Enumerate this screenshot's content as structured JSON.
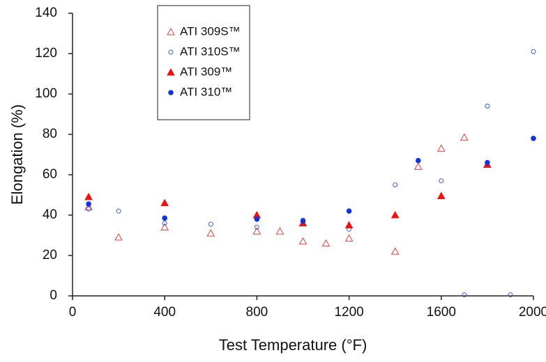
{
  "chart_data": {
    "type": "scatter",
    "xlabel": "Test Temperature (°F)",
    "ylabel": "Elongation  (%)",
    "xlim": [
      0,
      2000
    ],
    "xticks": [
      0,
      400,
      800,
      1200,
      1600,
      2000
    ],
    "ylim": [
      0,
      140
    ],
    "yticks": [
      0,
      20,
      40,
      60,
      80,
      100,
      120,
      140
    ],
    "legend": "top-left",
    "series": [
      {
        "name": "ATI 309S™",
        "color": "#e8413c",
        "marker": "triangle",
        "filled": false,
        "x": [
          70,
          200,
          400,
          600,
          800,
          900,
          1000,
          1100,
          1200,
          1400,
          1500,
          1600,
          1700,
          1800
        ],
        "values": [
          44,
          29,
          34,
          31,
          32,
          32,
          27,
          26,
          28.5,
          22,
          64,
          73,
          78.5,
          65
        ]
      },
      {
        "name": "ATI 310S™",
        "color": "#3b5bd6",
        "marker": "circle",
        "filled": false,
        "x": [
          70,
          200,
          400,
          600,
          800,
          1000,
          1200,
          1400,
          1600,
          1700,
          1800,
          1900,
          2000
        ],
        "values": [
          43,
          42,
          36,
          35.5,
          34,
          37.5,
          33,
          55,
          57,
          0.5,
          94,
          0.5,
          121
        ]
      },
      {
        "name": "ATI 309™",
        "color": "#ee1111",
        "marker": "triangle",
        "filled": true,
        "x": [
          70,
          400,
          800,
          1000,
          1200,
          1400,
          1600,
          1800
        ],
        "values": [
          49,
          46,
          40,
          36,
          35,
          40,
          49.5,
          65
        ]
      },
      {
        "name": "ATI 310™",
        "color": "#1133dd",
        "marker": "circle",
        "filled": true,
        "x": [
          70,
          400,
          800,
          1000,
          1200,
          1500,
          1800,
          2000
        ],
        "values": [
          45.5,
          38.5,
          38,
          37,
          42,
          67,
          66,
          78
        ]
      }
    ]
  }
}
